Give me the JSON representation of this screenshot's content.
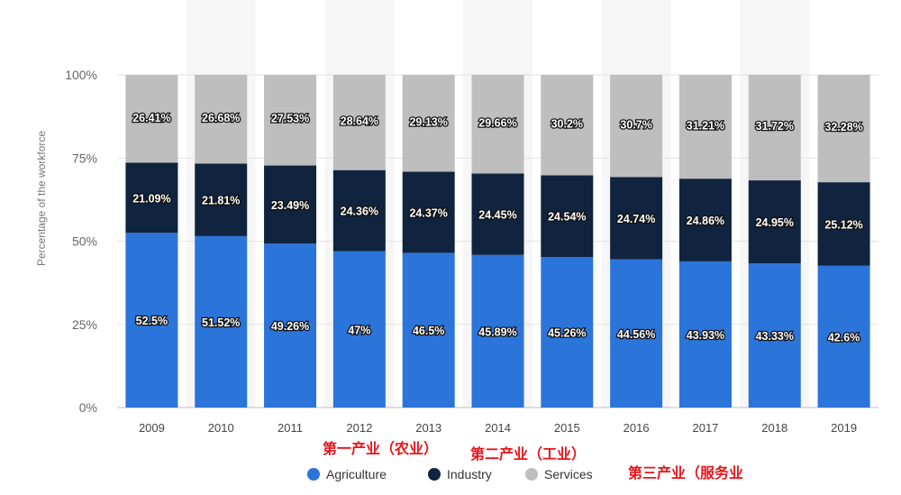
{
  "chart_data": {
    "type": "bar",
    "stacked": true,
    "categories": [
      "2009",
      "2010",
      "2011",
      "2012",
      "2013",
      "2014",
      "2015",
      "2016",
      "2017",
      "2018",
      "2019"
    ],
    "series": [
      {
        "name": "Agriculture",
        "color": "#2b74da",
        "values": [
          52.5,
          51.52,
          49.26,
          47,
          46.5,
          45.89,
          45.26,
          44.56,
          43.93,
          43.33,
          42.6
        ],
        "labels": [
          "52.5%",
          "51.52%",
          "49.26%",
          "47%",
          "46.5%",
          "45.89%",
          "45.26%",
          "44.56%",
          "43.93%",
          "43.33%",
          "42.6%"
        ]
      },
      {
        "name": "Industry",
        "color": "#10243f",
        "values": [
          21.09,
          21.81,
          23.49,
          24.36,
          24.37,
          24.45,
          24.54,
          24.74,
          24.86,
          24.95,
          25.12
        ],
        "labels": [
          "21.09%",
          "21.81%",
          "23.49%",
          "24.36%",
          "24.37%",
          "24.45%",
          "24.54%",
          "24.74%",
          "24.86%",
          "24.95%",
          "25.12%"
        ]
      },
      {
        "name": "Services",
        "color": "#bebebe",
        "values": [
          26.41,
          26.68,
          27.53,
          28.64,
          29.13,
          29.66,
          30.2,
          30.7,
          31.21,
          31.72,
          32.28
        ],
        "labels": [
          "26.41%",
          "26.68%",
          "27.53%",
          "28.64%",
          "29.13%",
          "29.66%",
          "30.2%",
          "30.7%",
          "31.21%",
          "31.72%",
          "32.28%"
        ]
      }
    ],
    "ylabel": "Percentage of the workforce",
    "ylim": [
      0,
      100
    ],
    "yticks": [
      0,
      25,
      50,
      75,
      100
    ],
    "ytick_labels": [
      "0%",
      "25%",
      "50%",
      "75%",
      "100%"
    ],
    "legend_position": "bottom-center",
    "grid": true
  },
  "annotations": [
    {
      "id": "primary",
      "text": "第一产业（农业）"
    },
    {
      "id": "secondary",
      "text": "第二产业（工业）"
    },
    {
      "id": "tertiary",
      "text": "第三产业（服务业"
    }
  ]
}
